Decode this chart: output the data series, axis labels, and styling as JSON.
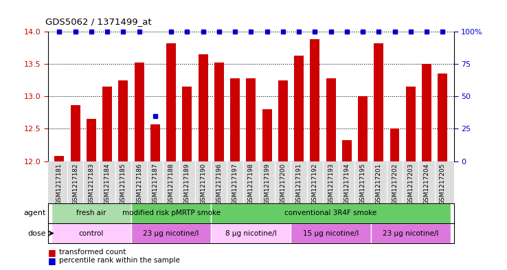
{
  "title": "GDS5062 / 1371499_at",
  "samples": [
    "GSM1217181",
    "GSM1217182",
    "GSM1217183",
    "GSM1217184",
    "GSM1217185",
    "GSM1217186",
    "GSM1217187",
    "GSM1217188",
    "GSM1217189",
    "GSM1217190",
    "GSM1217196",
    "GSM1217197",
    "GSM1217198",
    "GSM1217199",
    "GSM1217200",
    "GSM1217191",
    "GSM1217192",
    "GSM1217193",
    "GSM1217194",
    "GSM1217195",
    "GSM1217201",
    "GSM1217202",
    "GSM1217203",
    "GSM1217204",
    "GSM1217205"
  ],
  "bar_values": [
    12.08,
    12.87,
    12.65,
    13.15,
    13.25,
    13.52,
    12.57,
    13.82,
    13.15,
    13.65,
    13.52,
    13.28,
    13.28,
    12.8,
    13.25,
    13.63,
    13.88,
    13.28,
    12.32,
    13.0,
    13.82,
    12.5,
    13.15,
    13.5,
    13.35
  ],
  "percentile_values": [
    100,
    100,
    100,
    100,
    100,
    100,
    35,
    100,
    100,
    100,
    100,
    100,
    100,
    100,
    100,
    100,
    100,
    100,
    100,
    100,
    100,
    100,
    100,
    100,
    100
  ],
  "bar_color": "#cc0000",
  "percentile_color": "#0000cc",
  "ylim_left": [
    12,
    14
  ],
  "ylim_right": [
    0,
    100
  ],
  "yticks_left": [
    12,
    12.5,
    13,
    13.5,
    14
  ],
  "yticks_right": [
    0,
    25,
    50,
    75,
    100
  ],
  "agent_groups": [
    {
      "label": "fresh air",
      "start": 0,
      "end": 5,
      "color": "#aaddaa"
    },
    {
      "label": "modified risk pMRTP smoke",
      "start": 5,
      "end": 10,
      "color": "#66cc66"
    },
    {
      "label": "conventional 3R4F smoke",
      "start": 10,
      "end": 25,
      "color": "#66cc66"
    }
  ],
  "dose_groups": [
    {
      "label": "control",
      "start": 0,
      "end": 5,
      "color": "#ffccff"
    },
    {
      "label": "23 μg nicotine/l",
      "start": 5,
      "end": 10,
      "color": "#dd77dd"
    },
    {
      "label": "8 μg nicotine/l",
      "start": 10,
      "end": 15,
      "color": "#ffccff"
    },
    {
      "label": "15 μg nicotine/l",
      "start": 15,
      "end": 20,
      "color": "#dd77dd"
    },
    {
      "label": "23 μg nicotine/l",
      "start": 20,
      "end": 25,
      "color": "#dd77dd"
    }
  ],
  "legend_items": [
    {
      "label": "transformed count",
      "color": "#cc0000"
    },
    {
      "label": "percentile rank within the sample",
      "color": "#0000cc"
    }
  ],
  "agent_label": "agent",
  "dose_label": "dose",
  "tick_bg_color": "#dddddd",
  "plot_bg_color": "#ffffff"
}
